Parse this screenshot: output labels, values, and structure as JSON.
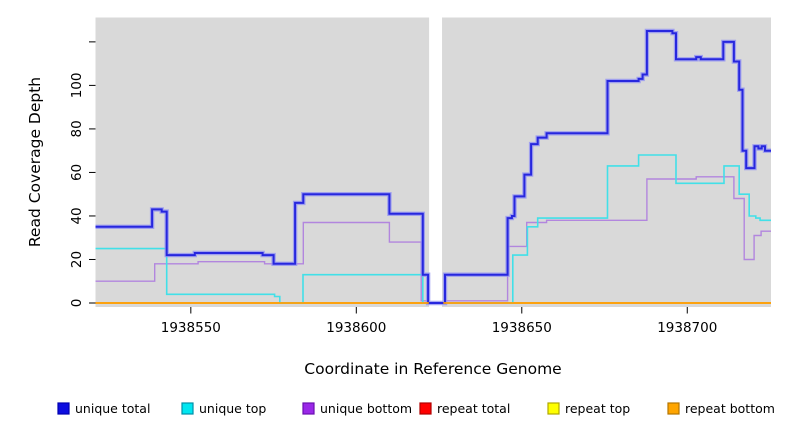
{
  "chart_data": {
    "type": "line",
    "subtype": "step-coverage-plot",
    "title": "",
    "xlabel": "Coordinate in Reference Genome",
    "ylabel": "Read Coverage Depth",
    "xlim": [
      1938521.2,
      1938725.3
    ],
    "ylim": [
      0,
      131.2
    ],
    "grid": false,
    "legend_position": "bottom",
    "panel_color": "#d9d9d9",
    "background_color": "#ffffff",
    "x_ticks": {
      "values": [
        1938550,
        1938600,
        1938650,
        1938700
      ],
      "labels": [
        "1938550",
        "1938600",
        "1938650",
        "1938700"
      ]
    },
    "y_ticks": {
      "values": [
        0,
        20,
        40,
        60,
        80,
        100,
        120
      ],
      "labels": [
        "0",
        "20",
        "40",
        "60",
        "80",
        "100",
        ""
      ]
    },
    "gap_region": {
      "x_start": 1938622.0,
      "x_end": 1938625.9,
      "color": "#ffffff"
    },
    "series": [
      {
        "name": "repeat total",
        "color": "#e02020",
        "width": 1.4,
        "segments": [
          {
            "points": [
              [
                1938521.2,
                0
              ]
            ],
            "end": 1938725.3
          }
        ]
      },
      {
        "name": "repeat top",
        "color": "#f2f200",
        "width": 1.4,
        "segments": [
          {
            "points": [
              [
                1938521.2,
                0
              ]
            ],
            "end": 1938725.3
          }
        ]
      },
      {
        "name": "unique bottom",
        "color": "#b286de",
        "width": 1.4,
        "segments": [
          {
            "points": [
              [
                1938521.2,
                10
              ],
              [
                1938539.1,
                18
              ],
              [
                1938552.2,
                19
              ],
              [
                1938572.3,
                18
              ],
              [
                1938584,
                37
              ],
              [
                1938610,
                28
              ],
              [
                1938619.6,
                1
              ],
              [
                1938621.7,
                0
              ],
              [
                1938626.8,
                1
              ],
              [
                1938645.7,
                26
              ],
              [
                1938651.5,
                37
              ],
              [
                1938657.5,
                38
              ],
              [
                1938687.8,
                57
              ],
              [
                1938702.7,
                58
              ],
              [
                1938714.1,
                48
              ],
              [
                1938717.2,
                20
              ],
              [
                1938720.2,
                31
              ],
              [
                1938722.3,
                33
              ]
            ],
            "end": 1938725.3
          }
        ]
      },
      {
        "name": "unique top",
        "color": "#41e0e8",
        "width": 1.6,
        "segments": [
          {
            "points": [
              [
                1938521.2,
                25
              ],
              [
                1938542.7,
                4
              ],
              [
                1938575.3,
                3
              ],
              [
                1938576.9,
                0
              ],
              [
                1938583.9,
                13
              ],
              [
                1938620.1,
                0
              ],
              [
                1938647.3,
                22
              ],
              [
                1938651.7,
                35
              ],
              [
                1938654.8,
                39
              ],
              [
                1938675.9,
                63
              ],
              [
                1938685.3,
                68
              ],
              [
                1938696.6,
                55
              ],
              [
                1938711.1,
                63
              ],
              [
                1938715.7,
                50
              ],
              [
                1938718.7,
                40
              ],
              [
                1938720.7,
                39
              ],
              [
                1938722,
                38
              ]
            ],
            "end": 1938725.3
          }
        ]
      },
      {
        "name": "unique total",
        "color": "#2727de",
        "halo": "#9191f2",
        "width": 2,
        "segments": [
          {
            "points": [
              [
                1938521.2,
                35
              ],
              [
                1938538.3,
                43
              ],
              [
                1938541.2,
                42
              ],
              [
                1938542.7,
                22
              ],
              [
                1938551.2,
                23
              ],
              [
                1938571.7,
                22
              ],
              [
                1938575,
                18
              ],
              [
                1938581.5,
                46
              ],
              [
                1938584,
                50
              ],
              [
                1938610,
                41
              ],
              [
                1938620.1,
                13
              ],
              [
                1938621.7,
                0
              ],
              [
                1938626.8,
                13
              ],
              [
                1938645.7,
                39
              ],
              [
                1938647,
                40
              ],
              [
                1938647.8,
                49
              ],
              [
                1938650.8,
                59
              ],
              [
                1938652.8,
                73
              ],
              [
                1938654.8,
                76
              ],
              [
                1938657.5,
                78
              ],
              [
                1938675.9,
                102
              ],
              [
                1938685.3,
                103
              ],
              [
                1938686.5,
                105
              ],
              [
                1938687.8,
                125
              ],
              [
                1938695.5,
                124
              ],
              [
                1938696.6,
                112
              ],
              [
                1938702.7,
                113
              ],
              [
                1938704.1,
                112
              ],
              [
                1938710.9,
                120
              ],
              [
                1938714.1,
                111
              ],
              [
                1938715.7,
                98
              ],
              [
                1938716.7,
                70
              ],
              [
                1938717.8,
                62
              ],
              [
                1938720.3,
                72
              ],
              [
                1938721.5,
                71
              ],
              [
                1938722.5,
                72
              ],
              [
                1938723.5,
                70
              ]
            ],
            "end": 1938725.3
          }
        ]
      },
      {
        "name": "repeat bottom",
        "color": "#ff9f0a",
        "width": 1.8,
        "segments": [
          {
            "points": [
              [
                1938521.2,
                0
              ]
            ],
            "end": 1938621.9
          },
          {
            "points": [
              [
                1938626.3,
                0
              ]
            ],
            "end": 1938725.3
          }
        ]
      }
    ],
    "legend": [
      {
        "label": "unique total",
        "fill": "#0d0de0",
        "border": "#0000b0"
      },
      {
        "label": "unique top",
        "fill": "#00e6f0",
        "border": "#0090a8"
      },
      {
        "label": "unique bottom",
        "fill": "#9a28e8",
        "border": "#6a0fb0"
      },
      {
        "label": "repeat total",
        "fill": "#ff0000",
        "border": "#b00000"
      },
      {
        "label": "repeat top",
        "fill": "#ffff00",
        "border": "#b0a800"
      },
      {
        "label": "repeat bottom",
        "fill": "#ffa500",
        "border": "#b57400"
      }
    ]
  }
}
